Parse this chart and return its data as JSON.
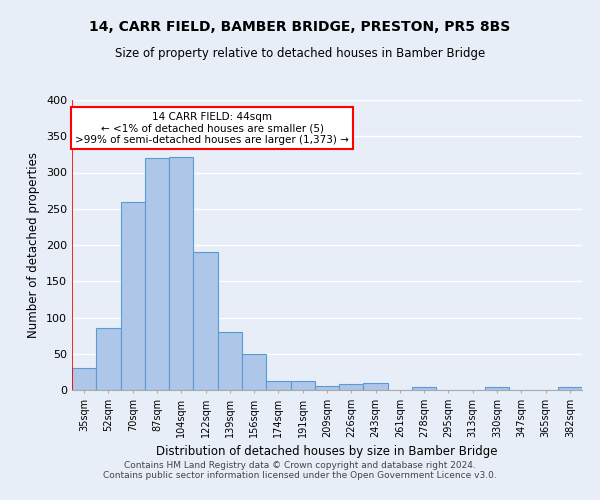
{
  "title": "14, CARR FIELD, BAMBER BRIDGE, PRESTON, PR5 8BS",
  "subtitle": "Size of property relative to detached houses in Bamber Bridge",
  "xlabel": "Distribution of detached houses by size in Bamber Bridge",
  "ylabel": "Number of detached properties",
  "footer_line1": "Contains HM Land Registry data © Crown copyright and database right 2024.",
  "footer_line2": "Contains public sector information licensed under the Open Government Licence v3.0.",
  "bin_labels": [
    "35sqm",
    "52sqm",
    "70sqm",
    "87sqm",
    "104sqm",
    "122sqm",
    "139sqm",
    "156sqm",
    "174sqm",
    "191sqm",
    "209sqm",
    "226sqm",
    "243sqm",
    "261sqm",
    "278sqm",
    "295sqm",
    "313sqm",
    "330sqm",
    "347sqm",
    "365sqm",
    "382sqm"
  ],
  "bar_values": [
    30,
    85,
    260,
    320,
    322,
    190,
    80,
    50,
    12,
    13,
    6,
    8,
    9,
    0,
    4,
    0,
    0,
    4,
    0,
    0,
    4
  ],
  "bar_color": "#aec6e8",
  "bar_edge_color": "#5a9ad5",
  "annotation_line1": "14 CARR FIELD: 44sqm",
  "annotation_line2": "← <1% of detached houses are smaller (5)",
  "annotation_line3": ">99% of semi-detached houses are larger (1,373) →",
  "annotation_box_color": "white",
  "annotation_box_edge_color": "red",
  "vline_color": "red",
  "bg_color": "#e8eef8",
  "plot_bg_color": "#e8eef8",
  "grid_color": "white",
  "ylim": [
    0,
    400
  ],
  "yticks": [
    0,
    50,
    100,
    150,
    200,
    250,
    300,
    350,
    400
  ]
}
